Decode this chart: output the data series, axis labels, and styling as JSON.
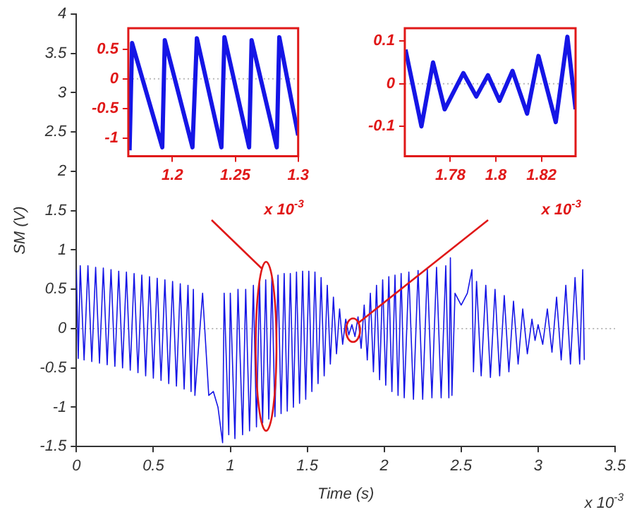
{
  "chart_data": [
    {
      "type": "line",
      "xlabel": "Time (s)",
      "ylabel": "SM (V)",
      "xlim": [
        0,
        3.5
      ],
      "ylim": [
        -1.5,
        4
      ],
      "xticks": [
        0,
        0.5,
        1,
        1.5,
        2,
        2.5,
        3,
        3.5
      ],
      "yticks": [
        -1.5,
        -1,
        -0.5,
        0,
        0.5,
        1,
        1.5,
        2,
        2.5,
        3,
        3.5,
        4
      ],
      "ref_lines": [
        {
          "axis": "y",
          "value": 0,
          "color": "#b8b8b8",
          "line_style": "dotted"
        }
      ],
      "annotations": [
        "x 10$^{-3}$"
      ],
      "series": [
        {
          "color": "#1515e6",
          "x": [
            0,
            0.012,
            0.025,
            0.05,
            0.075,
            0.1,
            0.125,
            0.15,
            0.175,
            0.2,
            0.225,
            0.25,
            0.275,
            0.3,
            0.325,
            0.35,
            0.375,
            0.4,
            0.425,
            0.45,
            0.475,
            0.5,
            0.525,
            0.55,
            0.575,
            0.6,
            0.625,
            0.65,
            0.675,
            0.7,
            0.725,
            0.745,
            0.76,
            0.77,
            0.82,
            0.86,
            0.89,
            0.92,
            0.95,
            0.96,
            0.99,
            1.0,
            1.03,
            1.05,
            1.08,
            1.1,
            1.125,
            1.15,
            1.17,
            1.19,
            1.21,
            1.23,
            1.25,
            1.27,
            1.29,
            1.31,
            1.33,
            1.35,
            1.37,
            1.39,
            1.41,
            1.43,
            1.45,
            1.47,
            1.49,
            1.51,
            1.53,
            1.55,
            1.57,
            1.59,
            1.61,
            1.63,
            1.65,
            1.67,
            1.69,
            1.71,
            1.73,
            1.75,
            1.77,
            1.79,
            1.81,
            1.83,
            1.85,
            1.87,
            1.89,
            1.91,
            1.93,
            1.95,
            1.97,
            1.99,
            2.01,
            2.03,
            2.05,
            2.07,
            2.09,
            2.11,
            2.13,
            2.16,
            2.19,
            2.22,
            2.25,
            2.28,
            2.31,
            2.34,
            2.37,
            2.4,
            2.42,
            2.43,
            2.44,
            2.46,
            2.5,
            2.54,
            2.57,
            2.58,
            2.6,
            2.63,
            2.66,
            2.69,
            2.72,
            2.75,
            2.78,
            2.81,
            2.84,
            2.87,
            2.9,
            2.93,
            2.96,
            2.98,
            3.0,
            3.03,
            3.06,
            3.09,
            3.12,
            3.15,
            3.18,
            3.21,
            3.24,
            3.27,
            3.29,
            3.3
          ],
          "values": [
            0.75,
            -0.38,
            0.8,
            -0.4,
            0.8,
            -0.42,
            0.78,
            -0.44,
            0.77,
            -0.46,
            0.75,
            -0.48,
            0.73,
            -0.5,
            0.72,
            -0.53,
            0.7,
            -0.56,
            0.68,
            -0.6,
            0.66,
            -0.63,
            0.64,
            -0.66,
            0.62,
            -0.7,
            0.6,
            -0.73,
            0.57,
            -0.77,
            0.55,
            -0.8,
            0.5,
            -0.85,
            0.45,
            -0.85,
            -0.8,
            -1.0,
            -1.45,
            0.45,
            -1.35,
            0.45,
            -1.4,
            0.5,
            -1.35,
            0.5,
            -1.3,
            0.55,
            -1.25,
            0.6,
            -1.2,
            0.62,
            -1.15,
            0.65,
            -1.12,
            0.68,
            -1.08,
            0.7,
            -1.05,
            0.7,
            -1.0,
            0.72,
            -0.95,
            0.73,
            -0.9,
            0.73,
            -0.8,
            0.72,
            -0.7,
            0.65,
            -0.6,
            0.55,
            -0.45,
            0.4,
            -0.32,
            0.25,
            -0.2,
            0.12,
            -0.08,
            0.05,
            -0.1,
            0.15,
            -0.25,
            0.3,
            -0.4,
            0.45,
            -0.55,
            0.55,
            -0.65,
            0.62,
            -0.72,
            0.66,
            -0.8,
            0.68,
            -0.85,
            0.7,
            -0.88,
            0.72,
            -0.9,
            0.74,
            -0.9,
            0.76,
            -0.88,
            0.78,
            -0.88,
            0.8,
            -0.88,
            0.9,
            -0.85,
            0.45,
            0.3,
            0.45,
            0.75,
            -0.55,
            0.6,
            -0.6,
            0.55,
            -0.62,
            0.5,
            -0.6,
            0.42,
            -0.55,
            0.35,
            -0.45,
            0.25,
            -0.32,
            0.12,
            -0.15,
            0.05,
            -0.2,
            0.25,
            -0.3,
            0.4,
            -0.4,
            0.55,
            -0.45,
            0.65,
            -0.45,
            0.75,
            -0.4
          ]
        }
      ]
    },
    {
      "type": "line",
      "xlim": [
        1.165,
        1.3
      ],
      "ylim": [
        -1.3,
        0.85
      ],
      "xticks": [
        1.2,
        1.25,
        1.3
      ],
      "yticks": [
        -1,
        -0.5,
        0,
        0.5
      ],
      "ref_lines": [
        {
          "axis": "y",
          "value": 0,
          "color": "#b8b8b8",
          "line_style": "dotted"
        }
      ],
      "annotations": [
        "x 10$^{-3}$"
      ],
      "series": [
        {
          "color": "#1515e6",
          "x": [
            1.166,
            1.168,
            1.192,
            1.194,
            1.216,
            1.2195,
            1.239,
            1.2414,
            1.261,
            1.263,
            1.283,
            1.285,
            1.3
          ],
          "values": [
            -1.2,
            0.6,
            -1.15,
            0.65,
            -1.15,
            0.68,
            -1.15,
            0.7,
            -1.15,
            0.65,
            -1.15,
            0.7,
            -0.95
          ]
        }
      ]
    },
    {
      "type": "line",
      "xlim": [
        1.76,
        1.835
      ],
      "ylim": [
        -0.17,
        0.13
      ],
      "xticks": [
        1.78,
        1.8,
        1.82
      ],
      "yticks": [
        -0.1,
        0,
        0.1
      ],
      "ref_lines": [
        {
          "axis": "y",
          "value": 0,
          "color": "#b8b8b8",
          "line_style": "dotted"
        }
      ],
      "annotations": [
        "x 10$^{-3}$"
      ],
      "series": [
        {
          "color": "#1515e6",
          "x": [
            1.7603,
            1.7673,
            1.7724,
            1.7775,
            1.7857,
            1.7914,
            1.7965,
            1.8016,
            1.8073,
            1.8137,
            1.8187,
            1.8263,
            1.8314,
            1.835
          ],
          "values": [
            0.08,
            -0.1,
            0.05,
            -0.06,
            0.025,
            -0.03,
            0.02,
            -0.04,
            0.03,
            -0.07,
            0.065,
            -0.09,
            0.11,
            -0.06
          ]
        }
      ]
    }
  ]
}
